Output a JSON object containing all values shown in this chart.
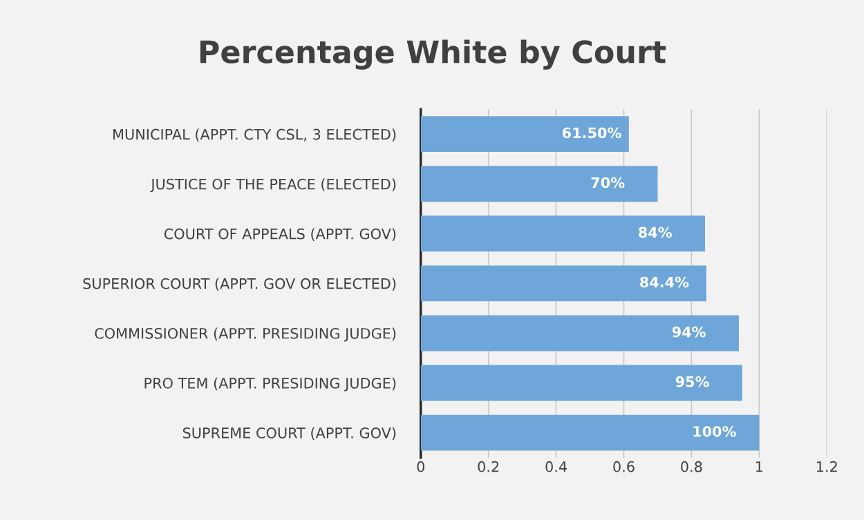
{
  "chart_data": {
    "type": "bar",
    "orientation": "horizontal",
    "title": "Percentage White by Court",
    "categories": [
      "MUNICIPAL (APPT. CTY CSL, 3 ELECTED)",
      "JUSTICE OF THE PEACE (ELECTED)",
      "COURT OF APPEALS (APPT. GOV)",
      "SUPERIOR COURT (APPT. GOV OR ELECTED)",
      "COMMISSIONER (APPT. PRESIDING JUDGE)",
      "PRO TEM (APPT. PRESIDING JUDGE)",
      "SUPREME COURT (APPT. GOV)"
    ],
    "values": [
      0.615,
      0.7,
      0.84,
      0.844,
      0.94,
      0.95,
      1
    ],
    "value_labels": [
      "61.50%",
      "70%",
      "84%",
      "84.4%",
      "94%",
      "95%",
      "100%"
    ],
    "color": "#6fa6d9",
    "xlim": [
      0,
      1.2
    ],
    "xticks": [
      0,
      0.2,
      0.4,
      0.6,
      0.8,
      1,
      1.2
    ],
    "grid": "x"
  }
}
